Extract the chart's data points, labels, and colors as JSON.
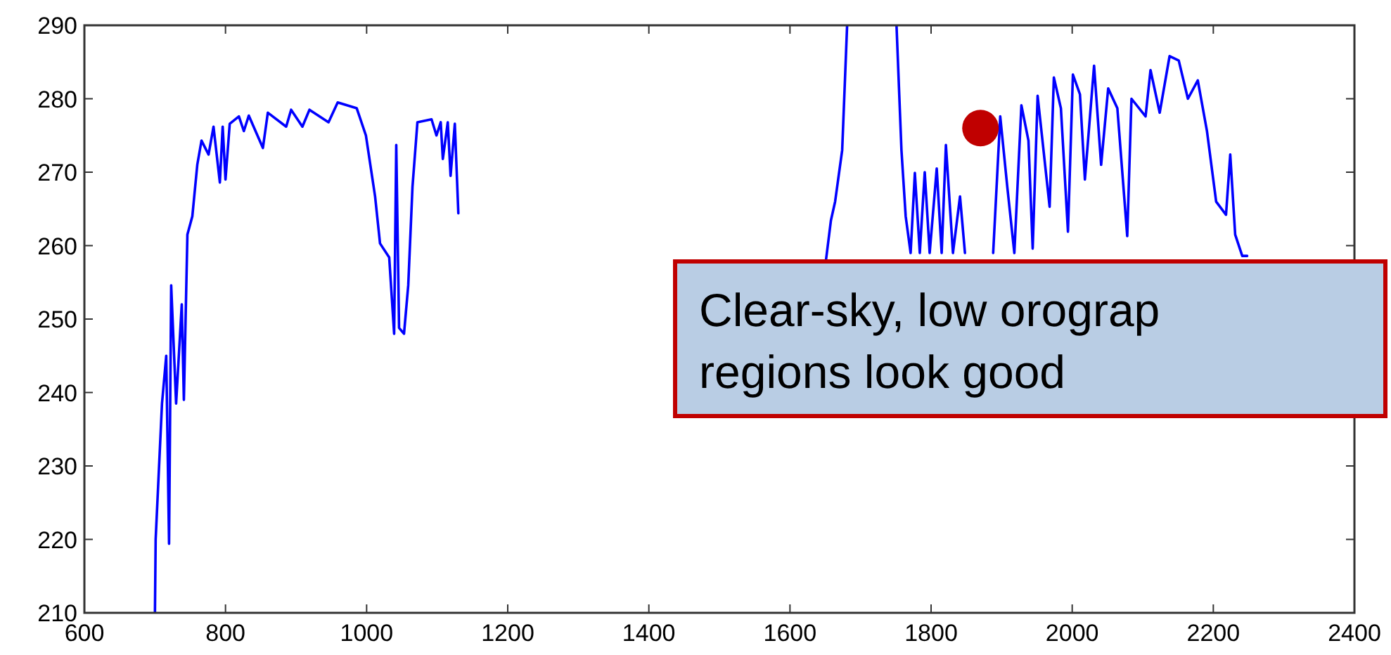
{
  "chart_data": {
    "type": "line",
    "xlim": [
      600,
      2400
    ],
    "ylim": [
      210,
      290
    ],
    "xticks": [
      600,
      800,
      1000,
      1200,
      1400,
      1600,
      1800,
      2000,
      2200,
      2400
    ],
    "yticks": [
      210,
      220,
      230,
      240,
      250,
      260,
      270,
      280,
      290
    ],
    "grid": false,
    "series": [
      {
        "color": "#0000ff",
        "marker": "none",
        "line_style": "solid",
        "x": [
          700,
          701,
          710,
          716,
          720,
          723,
          730,
          738,
          741,
          746,
          753,
          760,
          766,
          776,
          783,
          792,
          796,
          800,
          806,
          819,
          826,
          833,
          853,
          860,
          886,
          893,
          909,
          919,
          946,
          959,
          986,
          999,
          1012,
          1019,
          1032,
          1039,
          1042,
          1046,
          1053,
          1059,
          1065,
          1072,
          1092,
          1099,
          1105,
          1108,
          1115,
          1119,
          1125,
          1130,
          1400,
          1651,
          1658,
          1664,
          1674,
          1681,
          1716,
          1751,
          1758,
          1764,
          1771,
          1777,
          1784,
          1791,
          1798,
          1808,
          1815,
          1821,
          1831,
          1841,
          1848,
          1855,
          1864,
          1874,
          1888,
          1898,
          1908,
          1918,
          1928,
          1938,
          1944,
          1951,
          1968,
          1974,
          1984,
          1994,
          2001,
          2011,
          2018,
          2031,
          2041,
          2051,
          2064,
          2078,
          2084,
          2104,
          2111,
          2124,
          2138,
          2151,
          2164,
          2178,
          2191,
          2204,
          2218,
          2224,
          2231,
          2241,
          2248
        ],
        "values": [
          210,
          220,
          238.5,
          245,
          219.4,
          254.6,
          238.5,
          252,
          239,
          261.5,
          264,
          271,
          274.3,
          272.4,
          276.2,
          268.6,
          276.2,
          269,
          276.6,
          277.6,
          275.6,
          277.7,
          273.3,
          278.1,
          276.2,
          278.5,
          276.2,
          278.5,
          276.8,
          279.5,
          278.7,
          275,
          266.7,
          260.3,
          258.4,
          248,
          273.7,
          248.8,
          248,
          254.6,
          268,
          276.8,
          277.2,
          275,
          276.8,
          271.8,
          276.8,
          269.5,
          276.6,
          264.4,
          null,
          258,
          263.4,
          266,
          273,
          290,
          null,
          290,
          273,
          264,
          259,
          269.9,
          259,
          270,
          259,
          270.5,
          259,
          273.7,
          259,
          266.7,
          259,
          null,
          null,
          null,
          259,
          277.6,
          268,
          259,
          279.1,
          274.3,
          259.6,
          280.4,
          265.3,
          282.9,
          278.7,
          261.9,
          283.3,
          280.6,
          269,
          284.5,
          271,
          281.4,
          278.7,
          261.3,
          280,
          277.6,
          283.9,
          278.1,
          285.8,
          285.2,
          280,
          282.5,
          275.6,
          266,
          264.2,
          272.4,
          261.5,
          258.6,
          258.6
        ]
      },
      {
        "type": "scatter",
        "color": "#c00000",
        "marker": "circle",
        "x": [
          1870
        ],
        "values": [
          276
        ]
      }
    ],
    "annotations": [
      "Clear-sky, low orograp\nregions look good"
    ]
  }
}
